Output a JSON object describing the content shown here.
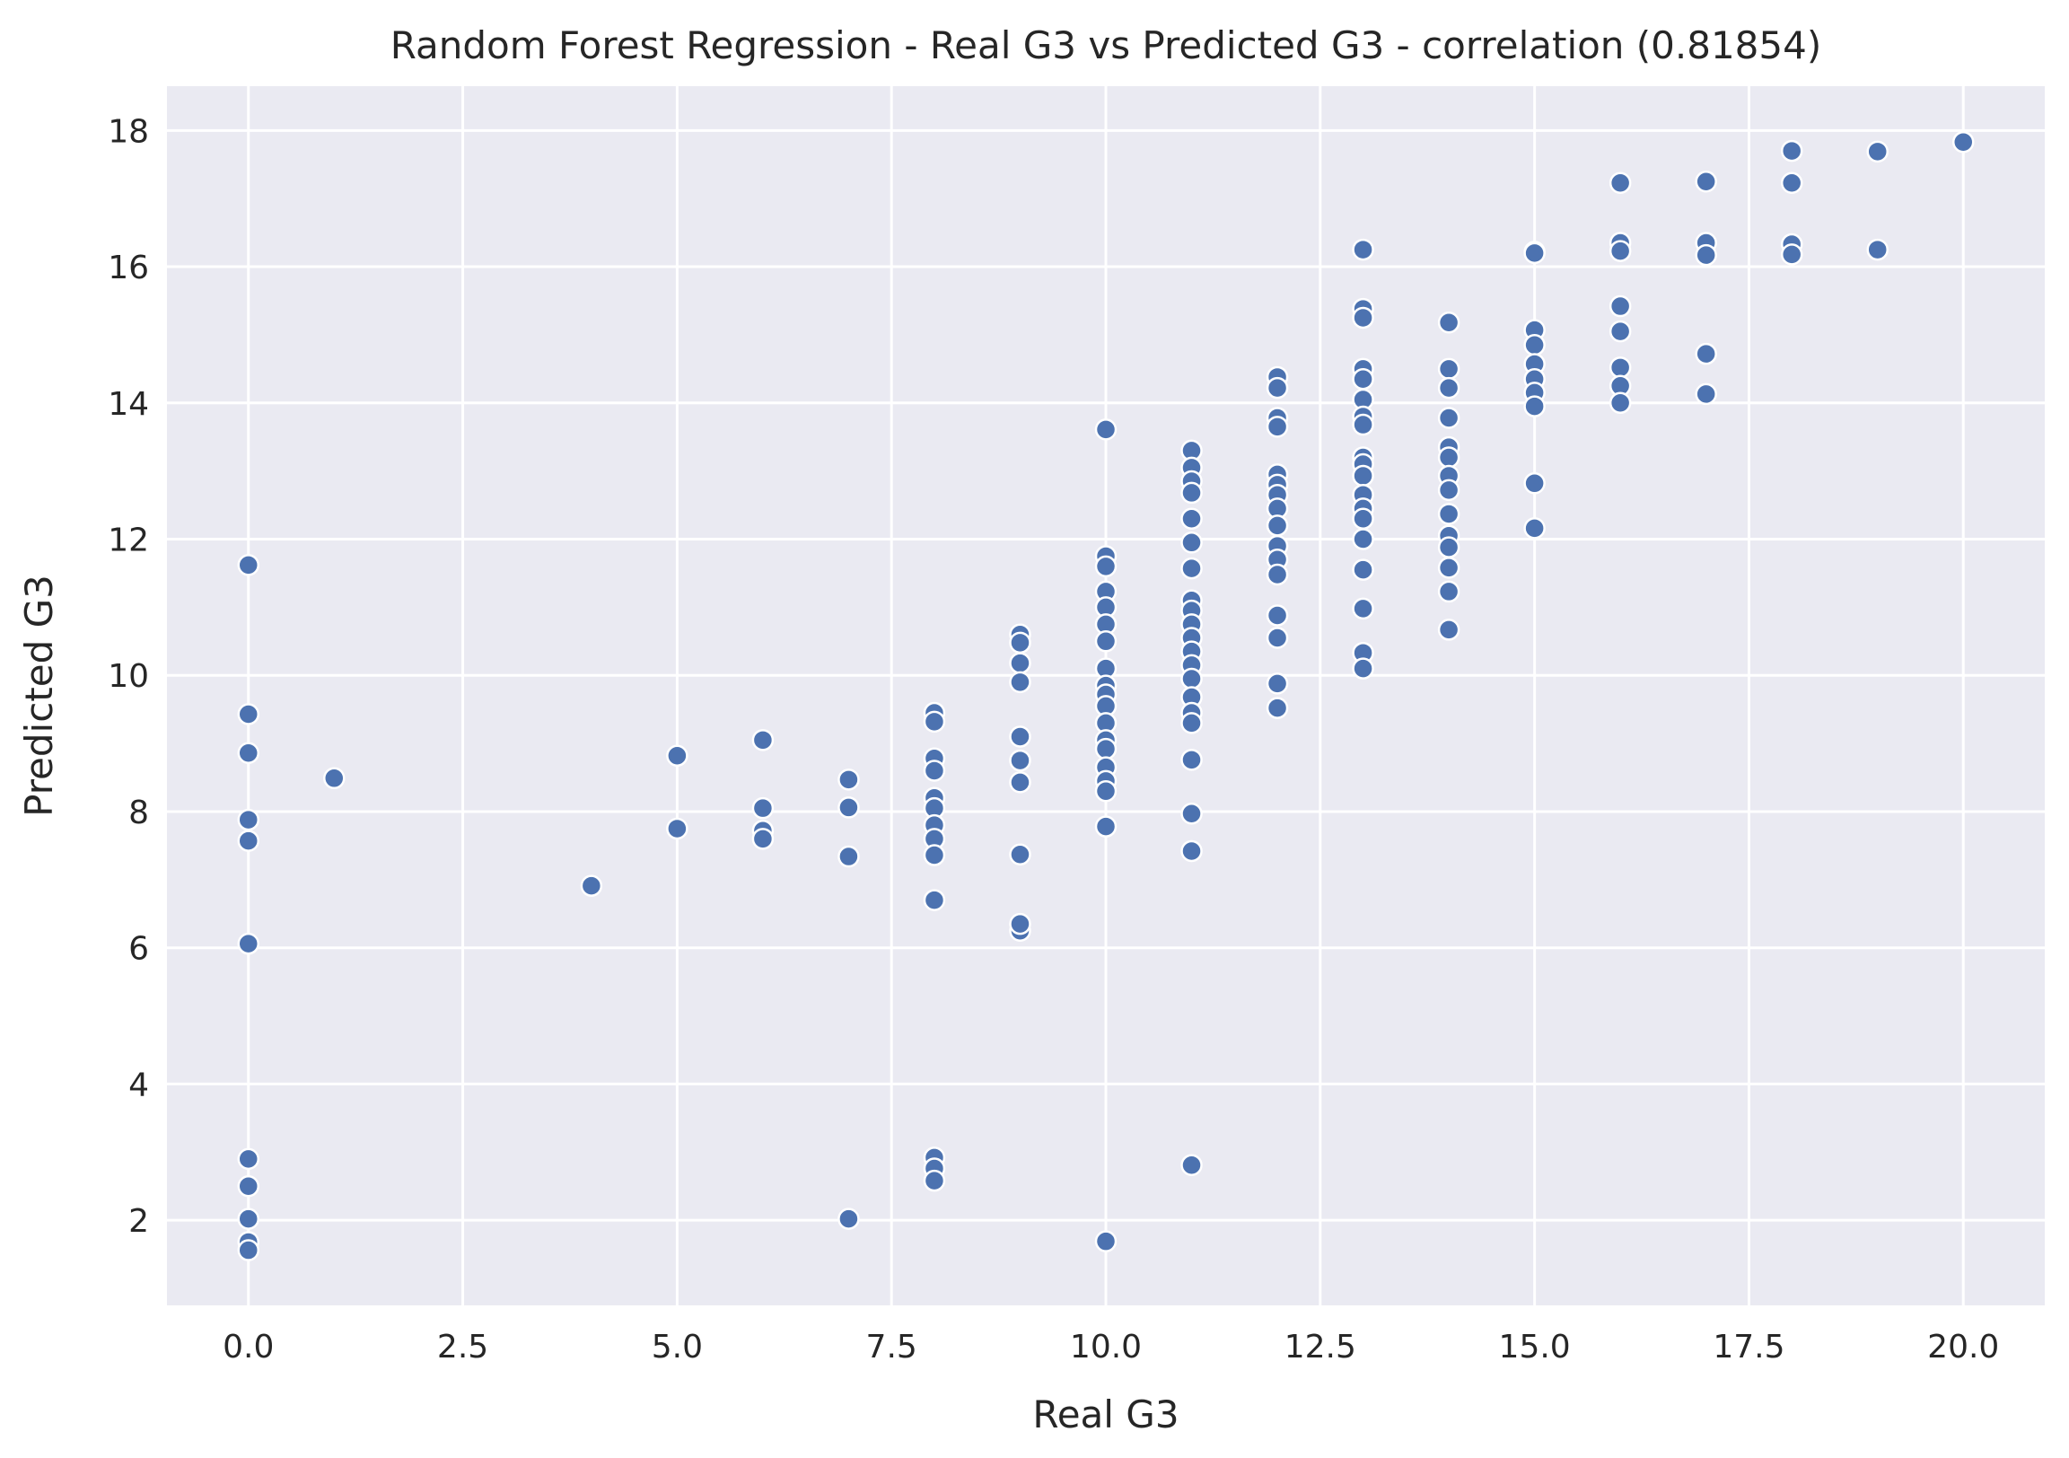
{
  "chart_data": {
    "type": "scatter",
    "title": "Random Forest Regression - Real G3 vs Predicted G3 - correlation (0.81854)",
    "xlabel": "Real G3",
    "ylabel": "Predicted G3",
    "xlim": [
      -0.95,
      20.95
    ],
    "ylim": [
      0.75,
      18.65
    ],
    "xticks": [
      0.0,
      2.5,
      5.0,
      7.5,
      10.0,
      12.5,
      15.0,
      17.5,
      20.0
    ],
    "xtick_labels": [
      "0.0",
      "2.5",
      "5.0",
      "7.5",
      "10.0",
      "12.5",
      "15.0",
      "17.5",
      "20.0"
    ],
    "yticks": [
      2,
      4,
      6,
      8,
      10,
      12,
      14,
      16,
      18
    ],
    "ytick_labels": [
      "2",
      "4",
      "6",
      "8",
      "10",
      "12",
      "14",
      "16",
      "18"
    ],
    "grid": true,
    "background_color": "#eaeaf2",
    "point_color": "#4c72b0",
    "series": [
      {
        "points": [
          [
            0,
            11.62
          ],
          [
            0,
            9.43
          ],
          [
            0,
            8.86
          ],
          [
            0,
            7.88
          ],
          [
            0,
            7.57
          ],
          [
            0,
            6.06
          ],
          [
            0,
            2.9
          ],
          [
            0,
            2.5
          ],
          [
            0,
            2.02
          ],
          [
            0,
            1.68
          ],
          [
            0,
            1.56
          ],
          [
            1,
            8.49
          ],
          [
            4,
            6.91
          ],
          [
            5,
            8.82
          ],
          [
            5,
            7.75
          ],
          [
            6,
            9.05
          ],
          [
            6,
            8.05
          ],
          [
            6,
            7.72
          ],
          [
            6,
            7.6
          ],
          [
            7,
            8.47
          ],
          [
            7,
            8.06
          ],
          [
            7,
            7.34
          ],
          [
            7,
            2.02
          ],
          [
            8,
            9.45
          ],
          [
            8,
            9.32
          ],
          [
            8,
            8.78
          ],
          [
            8,
            8.6
          ],
          [
            8,
            8.2
          ],
          [
            8,
            8.05
          ],
          [
            8,
            7.8
          ],
          [
            8,
            7.6
          ],
          [
            8,
            7.36
          ],
          [
            8,
            6.7
          ],
          [
            8,
            2.92
          ],
          [
            8,
            2.76
          ],
          [
            8,
            2.58
          ],
          [
            9,
            10.6
          ],
          [
            9,
            10.48
          ],
          [
            9,
            10.18
          ],
          [
            9,
            9.9
          ],
          [
            9,
            9.1
          ],
          [
            9,
            8.75
          ],
          [
            9,
            8.43
          ],
          [
            9,
            7.37
          ],
          [
            9,
            6.25
          ],
          [
            9,
            6.35
          ],
          [
            10,
            13.61
          ],
          [
            10,
            11.75
          ],
          [
            10,
            11.6
          ],
          [
            10,
            11.23
          ],
          [
            10,
            11.0
          ],
          [
            10,
            10.75
          ],
          [
            10,
            10.5
          ],
          [
            10,
            10.1
          ],
          [
            10,
            9.85
          ],
          [
            10,
            9.72
          ],
          [
            10,
            9.55
          ],
          [
            10,
            9.3
          ],
          [
            10,
            9.05
          ],
          [
            10,
            8.92
          ],
          [
            10,
            8.65
          ],
          [
            10,
            8.45
          ],
          [
            10,
            8.3
          ],
          [
            10,
            7.78
          ],
          [
            10,
            1.69
          ],
          [
            11,
            13.3
          ],
          [
            11,
            13.05
          ],
          [
            11,
            12.85
          ],
          [
            11,
            12.68
          ],
          [
            11,
            12.3
          ],
          [
            11,
            11.95
          ],
          [
            11,
            11.57
          ],
          [
            11,
            11.1
          ],
          [
            11,
            10.95
          ],
          [
            11,
            10.75
          ],
          [
            11,
            10.55
          ],
          [
            11,
            10.35
          ],
          [
            11,
            10.15
          ],
          [
            11,
            9.95
          ],
          [
            11,
            9.68
          ],
          [
            11,
            9.45
          ],
          [
            11,
            9.3
          ],
          [
            11,
            8.76
          ],
          [
            11,
            7.97
          ],
          [
            11,
            7.42
          ],
          [
            11,
            2.81
          ],
          [
            12,
            14.38
          ],
          [
            12,
            14.22
          ],
          [
            12,
            13.78
          ],
          [
            12,
            13.65
          ],
          [
            12,
            12.95
          ],
          [
            12,
            12.8
          ],
          [
            12,
            12.65
          ],
          [
            12,
            12.45
          ],
          [
            12,
            12.2
          ],
          [
            12,
            11.9
          ],
          [
            12,
            11.7
          ],
          [
            12,
            11.48
          ],
          [
            12,
            10.88
          ],
          [
            12,
            10.55
          ],
          [
            12,
            9.88
          ],
          [
            12,
            9.52
          ],
          [
            13,
            16.25
          ],
          [
            13,
            15.38
          ],
          [
            13,
            15.25
          ],
          [
            13,
            14.5
          ],
          [
            13,
            14.35
          ],
          [
            13,
            14.05
          ],
          [
            13,
            13.8
          ],
          [
            13,
            13.68
          ],
          [
            13,
            13.2
          ],
          [
            13,
            13.1
          ],
          [
            13,
            12.93
          ],
          [
            13,
            12.65
          ],
          [
            13,
            12.45
          ],
          [
            13,
            12.3
          ],
          [
            13,
            12.0
          ],
          [
            13,
            11.55
          ],
          [
            13,
            10.98
          ],
          [
            13,
            10.33
          ],
          [
            13,
            10.1
          ],
          [
            14,
            15.18
          ],
          [
            14,
            14.5
          ],
          [
            14,
            14.22
          ],
          [
            14,
            13.78
          ],
          [
            14,
            13.35
          ],
          [
            14,
            13.2
          ],
          [
            14,
            12.93
          ],
          [
            14,
            12.72
          ],
          [
            14,
            12.37
          ],
          [
            14,
            12.05
          ],
          [
            14,
            11.88
          ],
          [
            14,
            11.58
          ],
          [
            14,
            11.23
          ],
          [
            14,
            10.67
          ],
          [
            15,
            16.22
          ],
          [
            15,
            16.2
          ],
          [
            15,
            15.07
          ],
          [
            15,
            14.85
          ],
          [
            15,
            14.57
          ],
          [
            15,
            14.35
          ],
          [
            15,
            14.15
          ],
          [
            15,
            13.95
          ],
          [
            15,
            12.82
          ],
          [
            15,
            12.16
          ],
          [
            16,
            17.23
          ],
          [
            16,
            16.35
          ],
          [
            16,
            16.23
          ],
          [
            16,
            15.42
          ],
          [
            16,
            15.05
          ],
          [
            16,
            14.52
          ],
          [
            16,
            14.25
          ],
          [
            16,
            14.0
          ],
          [
            17,
            17.25
          ],
          [
            17,
            16.35
          ],
          [
            17,
            16.17
          ],
          [
            17,
            14.72
          ],
          [
            17,
            14.13
          ],
          [
            18,
            17.7
          ],
          [
            18,
            17.23
          ],
          [
            18,
            16.33
          ],
          [
            18,
            16.18
          ],
          [
            19,
            17.69
          ],
          [
            19,
            16.25
          ],
          [
            20,
            17.83
          ]
        ]
      }
    ]
  }
}
